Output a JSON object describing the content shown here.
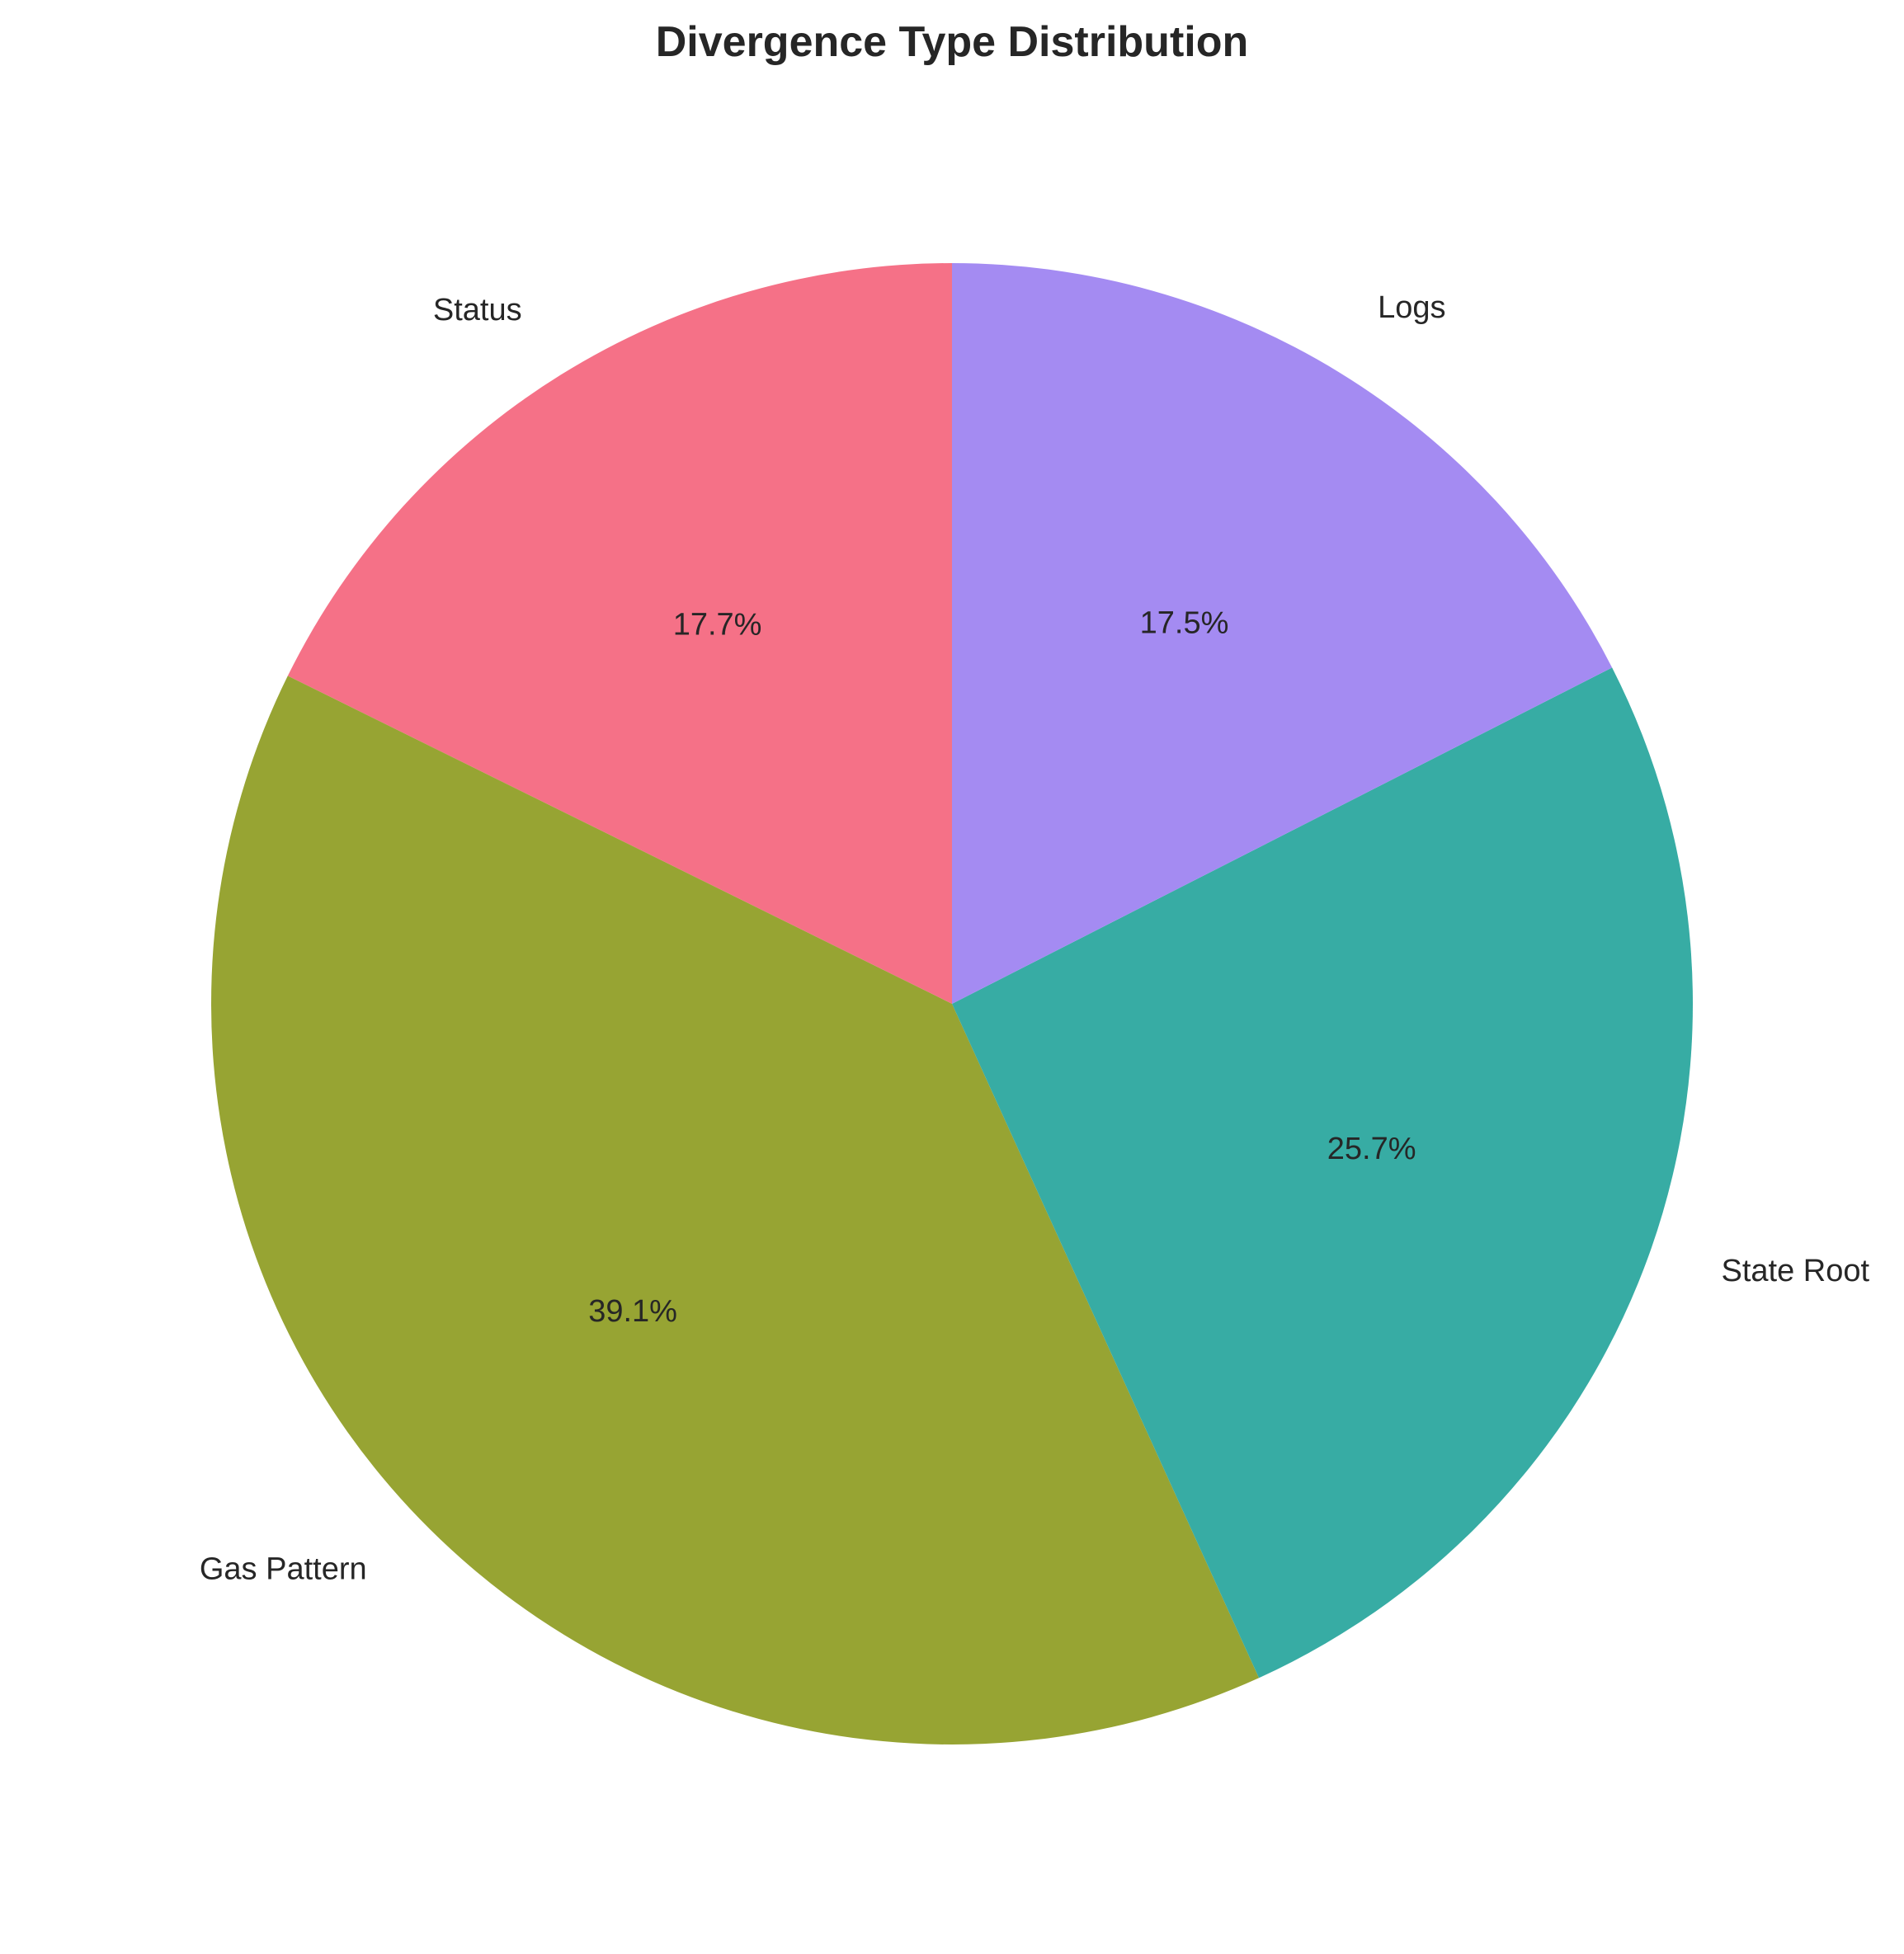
{
  "chart_data": {
    "type": "pie",
    "title": "Divergence Type Distribution",
    "start_angle_deg": 90,
    "direction": "counterclockwise",
    "slices": [
      {
        "label": "Status",
        "value": 17.7,
        "pct_label": "17.7%",
        "color": "#f57187"
      },
      {
        "label": "Gas Pattern",
        "value": 39.1,
        "pct_label": "39.1%",
        "color": "#97a433"
      },
      {
        "label": "State Root",
        "value": 25.7,
        "pct_label": "25.7%",
        "color": "#37aca4"
      },
      {
        "label": "Logs",
        "value": 17.5,
        "pct_label": "17.5%",
        "color": "#a48bf2"
      }
    ],
    "legend": "none"
  }
}
